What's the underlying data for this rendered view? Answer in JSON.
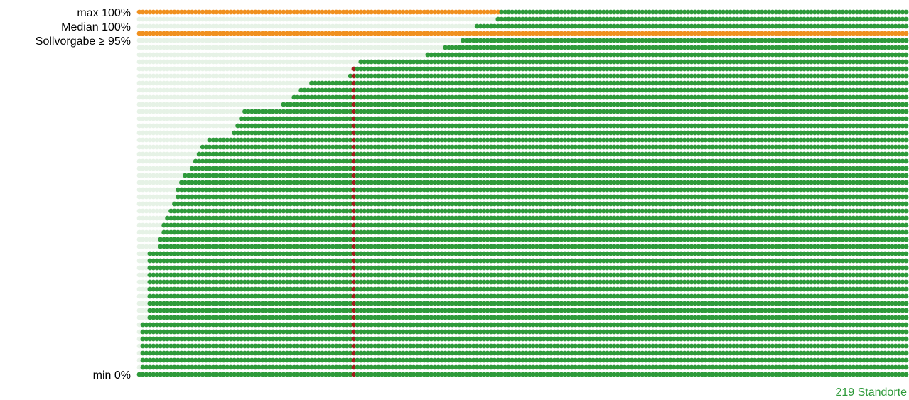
{
  "chart_data": {
    "type": "dot-matrix",
    "labels": {
      "max": "max 100%",
      "median": "Median 100%",
      "target": "Sollvorgabe ≥ 95%",
      "min": "min 0%"
    },
    "count_label": "219 Standorte",
    "site_count": 219,
    "y_range": [
      0,
      100
    ],
    "values_percent": {
      "max": 100,
      "median": 100,
      "target": 95,
      "min": 0
    },
    "highlighted_site_index": 61,
    "highlighted_site_value": 84,
    "sorted_site_values": [
      0,
      14,
      14,
      34,
      34,
      34,
      38,
      42,
      44,
      46,
      48,
      50,
      52,
      54,
      54,
      56,
      58,
      60,
      62,
      62,
      64,
      64,
      64,
      64,
      64,
      64,
      64,
      66,
      68,
      70,
      72,
      72,
      72,
      72,
      72,
      72,
      72,
      72,
      72,
      72,
      72,
      74,
      74,
      74,
      76,
      76,
      78,
      78,
      78,
      80,
      80,
      80,
      80,
      80,
      80,
      80,
      80,
      80,
      80,
      80,
      82,
      84,
      84,
      86,
      86,
      86,
      86,
      86,
      86,
      86,
      86,
      86,
      86,
      86,
      86,
      86,
      86,
      86,
      86,
      86,
      86,
      86,
      88,
      88,
      88,
      88,
      88,
      90,
      90,
      90,
      90,
      90,
      92,
      92,
      94,
      94,
      96,
      96,
      96,
      96,
      96,
      96,
      98,
      100,
      100,
      100,
      100,
      100,
      100,
      100,
      100,
      100,
      100,
      100,
      100,
      100,
      100,
      100,
      100,
      100,
      100,
      100,
      100,
      100,
      100,
      100,
      100,
      100,
      100,
      100,
      100,
      100,
      100,
      100,
      100,
      100,
      100,
      100,
      100,
      100,
      100,
      100,
      100,
      100,
      100,
      100,
      100,
      100,
      100,
      100,
      100,
      100,
      100,
      100,
      100,
      100,
      100,
      100,
      100,
      100,
      100,
      100,
      100,
      100,
      100,
      100,
      100,
      100,
      100,
      100,
      100,
      100,
      100,
      100,
      100,
      100,
      100,
      100,
      100,
      100,
      100,
      100,
      100,
      100,
      100,
      100,
      100,
      100,
      100,
      100,
      100,
      100,
      100,
      100,
      100,
      100,
      100,
      100,
      100,
      100,
      100,
      100,
      100,
      100,
      100,
      100,
      100,
      100,
      100,
      100,
      100,
      100,
      100,
      100,
      100,
      100,
      100,
      100,
      100
    ],
    "colors": {
      "filled": "#2e9a3a",
      "empty": "#e6f2e6",
      "reference_line": "#f0901e",
      "highlight": "#a11c1c",
      "count_label": "#2e9a3a",
      "text": "#000000"
    }
  }
}
